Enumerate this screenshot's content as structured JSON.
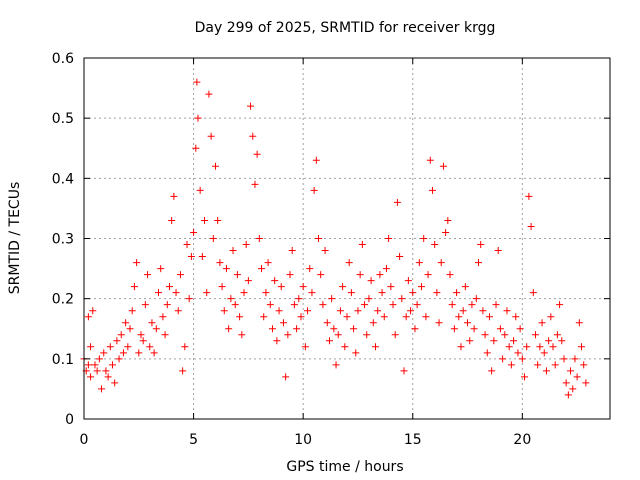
{
  "chart_data": {
    "type": "scatter",
    "title": "Day 299 of 2025, SRMTID for receiver krgg",
    "xlabel": "GPS time / hours",
    "ylabel": "SRMTID / TECUs",
    "xlim": [
      0,
      24
    ],
    "ylim": [
      0,
      0.6
    ],
    "xticks": [
      0,
      5,
      10,
      15,
      20
    ],
    "yticks": [
      0,
      0.1,
      0.2,
      0.3,
      0.4,
      0.5,
      0.6
    ],
    "xtick_labels": [
      "0",
      "5",
      "10",
      "15",
      "20"
    ],
    "ytick_labels": [
      "0",
      "0.1",
      "0.2",
      "0.3",
      "0.4",
      "0.5",
      "0.6"
    ],
    "grid": true,
    "marker": "plus",
    "marker_color": "#ff0000",
    "series": [
      {
        "name": "SRMTID",
        "points": [
          [
            0.0,
            0.1
          ],
          [
            0.1,
            0.08
          ],
          [
            0.2,
            0.09
          ],
          [
            0.2,
            0.17
          ],
          [
            0.3,
            0.07
          ],
          [
            0.3,
            0.12
          ],
          [
            0.4,
            0.18
          ],
          [
            0.5,
            0.09
          ],
          [
            0.6,
            0.08
          ],
          [
            0.7,
            0.1
          ],
          [
            0.8,
            0.05
          ],
          [
            0.9,
            0.11
          ],
          [
            1.0,
            0.08
          ],
          [
            1.1,
            0.07
          ],
          [
            1.2,
            0.12
          ],
          [
            1.3,
            0.09
          ],
          [
            1.4,
            0.06
          ],
          [
            1.5,
            0.13
          ],
          [
            1.6,
            0.1
          ],
          [
            1.7,
            0.14
          ],
          [
            1.8,
            0.11
          ],
          [
            1.9,
            0.16
          ],
          [
            2.0,
            0.12
          ],
          [
            2.1,
            0.15
          ],
          [
            2.2,
            0.18
          ],
          [
            2.3,
            0.22
          ],
          [
            2.4,
            0.26
          ],
          [
            2.5,
            0.11
          ],
          [
            2.6,
            0.14
          ],
          [
            2.7,
            0.13
          ],
          [
            2.8,
            0.19
          ],
          [
            2.9,
            0.24
          ],
          [
            3.0,
            0.12
          ],
          [
            3.1,
            0.16
          ],
          [
            3.2,
            0.11
          ],
          [
            3.3,
            0.15
          ],
          [
            3.4,
            0.21
          ],
          [
            3.5,
            0.25
          ],
          [
            3.6,
            0.17
          ],
          [
            3.7,
            0.14
          ],
          [
            3.8,
            0.19
          ],
          [
            3.9,
            0.22
          ],
          [
            4.0,
            0.33
          ],
          [
            4.1,
            0.37
          ],
          [
            4.2,
            0.21
          ],
          [
            4.3,
            0.18
          ],
          [
            4.4,
            0.24
          ],
          [
            4.5,
            0.08
          ],
          [
            4.6,
            0.12
          ],
          [
            4.7,
            0.29
          ],
          [
            4.8,
            0.2
          ],
          [
            4.9,
            0.27
          ],
          [
            5.0,
            0.31
          ],
          [
            5.1,
            0.45
          ],
          [
            5.15,
            0.56
          ],
          [
            5.2,
            0.5
          ],
          [
            5.3,
            0.38
          ],
          [
            5.4,
            0.27
          ],
          [
            5.5,
            0.33
          ],
          [
            5.6,
            0.21
          ],
          [
            5.7,
            0.54
          ],
          [
            5.8,
            0.47
          ],
          [
            5.9,
            0.3
          ],
          [
            6.0,
            0.42
          ],
          [
            6.1,
            0.33
          ],
          [
            6.2,
            0.26
          ],
          [
            6.3,
            0.22
          ],
          [
            6.4,
            0.18
          ],
          [
            6.5,
            0.25
          ],
          [
            6.6,
            0.15
          ],
          [
            6.7,
            0.2
          ],
          [
            6.8,
            0.28
          ],
          [
            6.9,
            0.19
          ],
          [
            7.0,
            0.24
          ],
          [
            7.1,
            0.17
          ],
          [
            7.2,
            0.14
          ],
          [
            7.3,
            0.21
          ],
          [
            7.4,
            0.29
          ],
          [
            7.5,
            0.23
          ],
          [
            7.6,
            0.52
          ],
          [
            7.7,
            0.47
          ],
          [
            7.8,
            0.39
          ],
          [
            7.9,
            0.44
          ],
          [
            8.0,
            0.3
          ],
          [
            8.1,
            0.25
          ],
          [
            8.2,
            0.17
          ],
          [
            8.3,
            0.21
          ],
          [
            8.4,
            0.26
          ],
          [
            8.5,
            0.19
          ],
          [
            8.6,
            0.15
          ],
          [
            8.7,
            0.23
          ],
          [
            8.8,
            0.13
          ],
          [
            8.9,
            0.18
          ],
          [
            9.0,
            0.22
          ],
          [
            9.1,
            0.16
          ],
          [
            9.2,
            0.07
          ],
          [
            9.3,
            0.14
          ],
          [
            9.4,
            0.24
          ],
          [
            9.5,
            0.28
          ],
          [
            9.6,
            0.19
          ],
          [
            9.7,
            0.15
          ],
          [
            9.8,
            0.2
          ],
          [
            9.9,
            0.17
          ],
          [
            10.0,
            0.22
          ],
          [
            10.1,
            0.12
          ],
          [
            10.2,
            0.18
          ],
          [
            10.3,
            0.25
          ],
          [
            10.4,
            0.21
          ],
          [
            10.5,
            0.38
          ],
          [
            10.6,
            0.43
          ],
          [
            10.7,
            0.3
          ],
          [
            10.8,
            0.24
          ],
          [
            10.9,
            0.19
          ],
          [
            11.0,
            0.28
          ],
          [
            11.1,
            0.16
          ],
          [
            11.2,
            0.13
          ],
          [
            11.3,
            0.2
          ],
          [
            11.4,
            0.15
          ],
          [
            11.5,
            0.09
          ],
          [
            11.6,
            0.14
          ],
          [
            11.7,
            0.18
          ],
          [
            11.8,
            0.22
          ],
          [
            11.9,
            0.12
          ],
          [
            12.0,
            0.17
          ],
          [
            12.1,
            0.26
          ],
          [
            12.2,
            0.21
          ],
          [
            12.3,
            0.15
          ],
          [
            12.4,
            0.11
          ],
          [
            12.5,
            0.18
          ],
          [
            12.6,
            0.24
          ],
          [
            12.7,
            0.29
          ],
          [
            12.8,
            0.19
          ],
          [
            12.9,
            0.14
          ],
          [
            13.0,
            0.2
          ],
          [
            13.1,
            0.23
          ],
          [
            13.2,
            0.16
          ],
          [
            13.3,
            0.12
          ],
          [
            13.4,
            0.18
          ],
          [
            13.5,
            0.24
          ],
          [
            13.6,
            0.21
          ],
          [
            13.7,
            0.17
          ],
          [
            13.8,
            0.25
          ],
          [
            13.9,
            0.3
          ],
          [
            14.0,
            0.22
          ],
          [
            14.1,
            0.19
          ],
          [
            14.2,
            0.14
          ],
          [
            14.3,
            0.36
          ],
          [
            14.4,
            0.27
          ],
          [
            14.5,
            0.2
          ],
          [
            14.6,
            0.08
          ],
          [
            14.7,
            0.17
          ],
          [
            14.8,
            0.23
          ],
          [
            14.9,
            0.18
          ],
          [
            15.0,
            0.21
          ],
          [
            15.1,
            0.15
          ],
          [
            15.2,
            0.19
          ],
          [
            15.3,
            0.26
          ],
          [
            15.4,
            0.22
          ],
          [
            15.5,
            0.3
          ],
          [
            15.6,
            0.17
          ],
          [
            15.7,
            0.24
          ],
          [
            15.8,
            0.43
          ],
          [
            15.9,
            0.38
          ],
          [
            16.0,
            0.29
          ],
          [
            16.1,
            0.21
          ],
          [
            16.2,
            0.16
          ],
          [
            16.3,
            0.26
          ],
          [
            16.4,
            0.42
          ],
          [
            16.5,
            0.31
          ],
          [
            16.6,
            0.33
          ],
          [
            16.7,
            0.24
          ],
          [
            16.8,
            0.19
          ],
          [
            16.9,
            0.15
          ],
          [
            17.0,
            0.21
          ],
          [
            17.1,
            0.17
          ],
          [
            17.2,
            0.12
          ],
          [
            17.3,
            0.18
          ],
          [
            17.4,
            0.22
          ],
          [
            17.5,
            0.16
          ],
          [
            17.6,
            0.13
          ],
          [
            17.7,
            0.19
          ],
          [
            17.8,
            0.15
          ],
          [
            17.9,
            0.2
          ],
          [
            18.0,
            0.26
          ],
          [
            18.1,
            0.29
          ],
          [
            18.2,
            0.18
          ],
          [
            18.3,
            0.14
          ],
          [
            18.4,
            0.11
          ],
          [
            18.5,
            0.17
          ],
          [
            18.6,
            0.08
          ],
          [
            18.7,
            0.13
          ],
          [
            18.8,
            0.19
          ],
          [
            18.9,
            0.28
          ],
          [
            19.0,
            0.15
          ],
          [
            19.1,
            0.1
          ],
          [
            19.2,
            0.14
          ],
          [
            19.3,
            0.18
          ],
          [
            19.4,
            0.12
          ],
          [
            19.5,
            0.09
          ],
          [
            19.6,
            0.13
          ],
          [
            19.7,
            0.17
          ],
          [
            19.8,
            0.11
          ],
          [
            19.9,
            0.15
          ],
          [
            20.0,
            0.1
          ],
          [
            20.1,
            0.07
          ],
          [
            20.2,
            0.12
          ],
          [
            20.3,
            0.37
          ],
          [
            20.4,
            0.32
          ],
          [
            20.5,
            0.21
          ],
          [
            20.6,
            0.14
          ],
          [
            20.7,
            0.09
          ],
          [
            20.8,
            0.12
          ],
          [
            20.9,
            0.16
          ],
          [
            21.0,
            0.11
          ],
          [
            21.1,
            0.08
          ],
          [
            21.2,
            0.13
          ],
          [
            21.3,
            0.17
          ],
          [
            21.4,
            0.12
          ],
          [
            21.5,
            0.09
          ],
          [
            21.6,
            0.14
          ],
          [
            21.7,
            0.19
          ],
          [
            21.8,
            0.13
          ],
          [
            21.9,
            0.1
          ],
          [
            22.0,
            0.06
          ],
          [
            22.1,
            0.04
          ],
          [
            22.2,
            0.08
          ],
          [
            22.3,
            0.05
          ],
          [
            22.4,
            0.1
          ],
          [
            22.5,
            0.07
          ],
          [
            22.6,
            0.16
          ],
          [
            22.7,
            0.12
          ],
          [
            22.8,
            0.09
          ],
          [
            22.9,
            0.06
          ]
        ]
      }
    ]
  }
}
